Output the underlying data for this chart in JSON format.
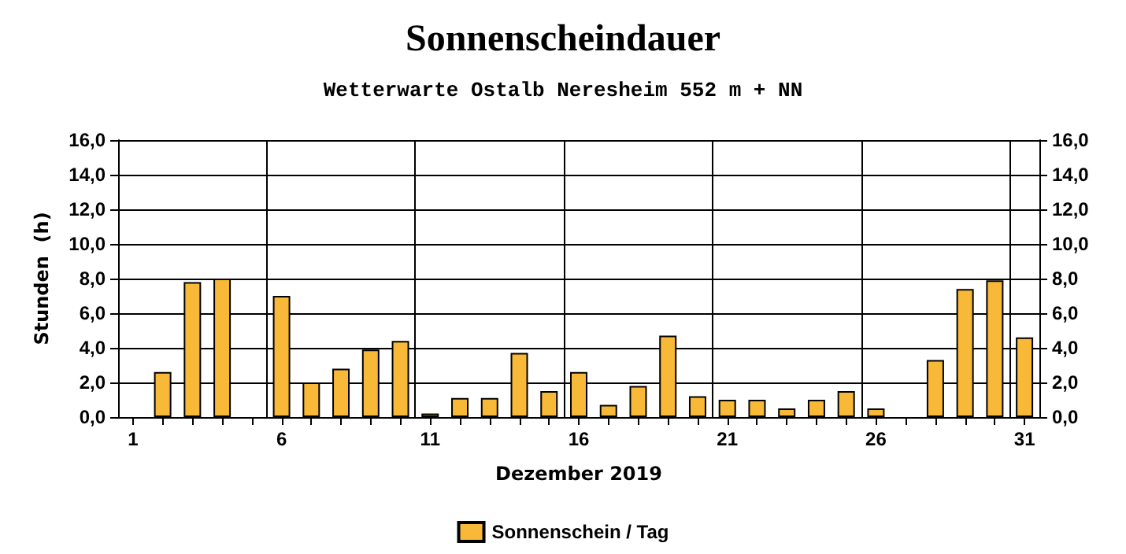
{
  "chart_data": {
    "type": "bar",
    "title": "Sonnenscheindauer",
    "subtitle": "Wetterwarte Ostalb Neresheim 552 m + NN",
    "xlabel": "Dezember 2019",
    "ylabel": "Stunden  (h)",
    "categories": [
      "1",
      null,
      null,
      null,
      null,
      "6",
      null,
      null,
      null,
      null,
      "11",
      null,
      null,
      null,
      null,
      "16",
      null,
      null,
      null,
      null,
      "21",
      null,
      null,
      null,
      null,
      "26",
      null,
      null,
      null,
      null,
      "31"
    ],
    "series": [
      {
        "name": "Sonnenschein / Tag",
        "color": "#f8b838",
        "values": [
          0,
          2.6,
          7.8,
          8.0,
          0,
          7.0,
          2.0,
          2.8,
          3.9,
          4.4,
          0.2,
          1.1,
          1.1,
          3.7,
          1.5,
          2.6,
          0.7,
          1.8,
          4.7,
          1.2,
          1.0,
          1.0,
          0.5,
          1.0,
          1.5,
          0.5,
          0,
          3.3,
          7.4,
          7.9,
          4.6
        ]
      }
    ],
    "ylim": [
      0,
      16
    ],
    "yticks": [
      {
        "value": 0,
        "label": "0,0"
      },
      {
        "value": 2,
        "label": "2,0"
      },
      {
        "value": 4,
        "label": "4,0"
      },
      {
        "value": 6,
        "label": "6,0"
      },
      {
        "value": 8,
        "label": "8,0"
      },
      {
        "value": 10,
        "label": "10,0"
      },
      {
        "value": 12,
        "label": "12,0"
      },
      {
        "value": 14,
        "label": "14,0"
      },
      {
        "value": 16,
        "label": "16,0"
      }
    ],
    "y2lim": [
      0,
      16
    ],
    "y2ticks": [
      {
        "value": 0,
        "label": "0,0"
      },
      {
        "value": 2,
        "label": "2,0"
      },
      {
        "value": 4,
        "label": "4,0"
      },
      {
        "value": 6,
        "label": "6,0"
      },
      {
        "value": 8,
        "label": "8,0"
      },
      {
        "value": 10,
        "label": "10,0"
      },
      {
        "value": 12,
        "label": "12,0"
      },
      {
        "value": 14,
        "label": "14,0"
      },
      {
        "value": 16,
        "label": "16,0"
      }
    ],
    "grid": true,
    "legend": "bottom"
  }
}
